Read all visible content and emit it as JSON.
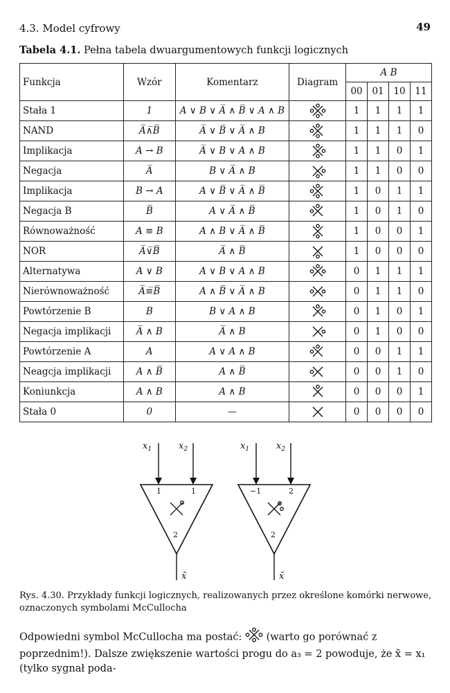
{
  "header": {
    "section": "4.3. Model cyfrowy",
    "page_number": "49"
  },
  "table_caption": {
    "label": "Tabela 4.1.",
    "text": "Pełna tabela dwuargumentowych funkcji logicznych"
  },
  "columns": {
    "funkcja": "Funkcja",
    "wzor": "Wzór",
    "komentarz": "Komentarz",
    "diagram": "Diagram",
    "ab": "A B",
    "ab_values": [
      "00",
      "01",
      "10",
      "11"
    ]
  },
  "rows": [
    {
      "funkcja": "Stała 1",
      "wzor": "1",
      "komentarz": "A ∨ B ∨ A̅ ∧ B̅ ∨ A ∧ B",
      "diagram": "dots-all",
      "values": [
        "1",
        "1",
        "1",
        "1"
      ]
    },
    {
      "funkcja": "NAND",
      "wzor": "A̅∧̅B̅",
      "komentarz": "A̅ ∨ B̅ ∨ A̅ ∧ B",
      "diagram": "dots-tlb",
      "values": [
        "1",
        "1",
        "1",
        "0"
      ]
    },
    {
      "funkcja": "Implikacja",
      "wzor": "A → B",
      "komentarz": "A̅ ∨ B ∨ A ∧ B",
      "diagram": "dots-trb",
      "values": [
        "1",
        "1",
        "0",
        "1"
      ]
    },
    {
      "funkcja": "Negacja",
      "wzor": "A̅",
      "komentarz": "B ∨ A̅ ∧ B",
      "diagram": "dots-rb",
      "values": [
        "1",
        "1",
        "0",
        "0"
      ]
    },
    {
      "funkcja": "Implikacja",
      "wzor": "B → A",
      "komentarz": "A ∨ B̅ ∨ A̅ ∧ B̅",
      "diagram": "dots-tlb2",
      "values": [
        "1",
        "0",
        "1",
        "1"
      ]
    },
    {
      "funkcja": "Negacja B",
      "wzor": "B̅",
      "komentarz": "A ∨ A̅ ∧ B̅",
      "diagram": "dots-lt",
      "values": [
        "1",
        "0",
        "1",
        "0"
      ]
    },
    {
      "funkcja": "Równoważność",
      "wzor": "A ≡ B",
      "komentarz": "A ∧ B ∨ A̅ ∧ B̅",
      "diagram": "dots-tb",
      "values": [
        "1",
        "0",
        "0",
        "1"
      ]
    },
    {
      "funkcja": "NOR",
      "wzor": "A̅∨̅B̅",
      "komentarz": "A̅ ∧ B̅",
      "diagram": "dots-b",
      "values": [
        "1",
        "0",
        "0",
        "0"
      ]
    },
    {
      "funkcja": "Alternatywa",
      "wzor": "A ∨ B",
      "komentarz": "A ∨ B ∨ A ∧ B",
      "diagram": "dots-tlr",
      "values": [
        "0",
        "1",
        "1",
        "1"
      ]
    },
    {
      "funkcja": "Nierównoważność",
      "wzor": "A̅≡̅B̅",
      "komentarz": "A ∧ B̅ ∨ A̅ ∧ B",
      "diagram": "dots-lr",
      "values": [
        "0",
        "1",
        "1",
        "0"
      ]
    },
    {
      "funkcja": "Powtórzenie B",
      "wzor": "B",
      "komentarz": "B ∨ A ∧ B",
      "diagram": "dots-tr",
      "values": [
        "0",
        "1",
        "0",
        "1"
      ]
    },
    {
      "funkcja": "Negacja implikacji",
      "wzor": "A̅ ∧ B",
      "komentarz": "A̅ ∧ B",
      "diagram": "dots-r",
      "values": [
        "0",
        "1",
        "0",
        "0"
      ]
    },
    {
      "funkcja": "Powtórzenie A",
      "wzor": "A",
      "komentarz": "A ∨ A ∧ B",
      "diagram": "dots-tl",
      "values": [
        "0",
        "0",
        "1",
        "1"
      ]
    },
    {
      "funkcja": "Neagcja implikacji",
      "wzor": "A ∧ B̅",
      "komentarz": "A ∧ B̅",
      "diagram": "dots-l",
      "values": [
        "0",
        "0",
        "1",
        "0"
      ]
    },
    {
      "funkcja": "Koniunkcja",
      "wzor": "A ∧ B",
      "komentarz": "A ∧ B",
      "diagram": "dots-t",
      "values": [
        "0",
        "0",
        "0",
        "1"
      ]
    },
    {
      "funkcja": "Stała 0",
      "wzor": "0",
      "komentarz": "—",
      "diagram": "dots-none",
      "values": [
        "0",
        "0",
        "0",
        "0"
      ]
    }
  ],
  "figure": {
    "left": {
      "in1": "x",
      "in1_sub": "1",
      "in2": "x",
      "in2_sub": "2",
      "w1": "1",
      "w2": "1",
      "threshold": "2",
      "out": "x̃"
    },
    "right": {
      "in1": "x",
      "in1_sub": "1",
      "in2": "x",
      "in2_sub": "2",
      "w1": "−1",
      "w2": "2",
      "threshold": "2",
      "out": "x̃"
    }
  },
  "figure_caption": "Rys. 4.30. Przykłady funkcji logicznych, realizowanych przez określone komórki nerwowe, oznaczonych symbolami McCullocha",
  "paragraph": {
    "before_icon": "Odpowiedni symbol McCullocha ma postać:",
    "after_icon": "(warto go porównać z poprzednim!). Dalsze zwiększenie wartości progu do a₃ = 2 powoduje, że x̃ = x₁ (tylko sygnał poda-"
  }
}
